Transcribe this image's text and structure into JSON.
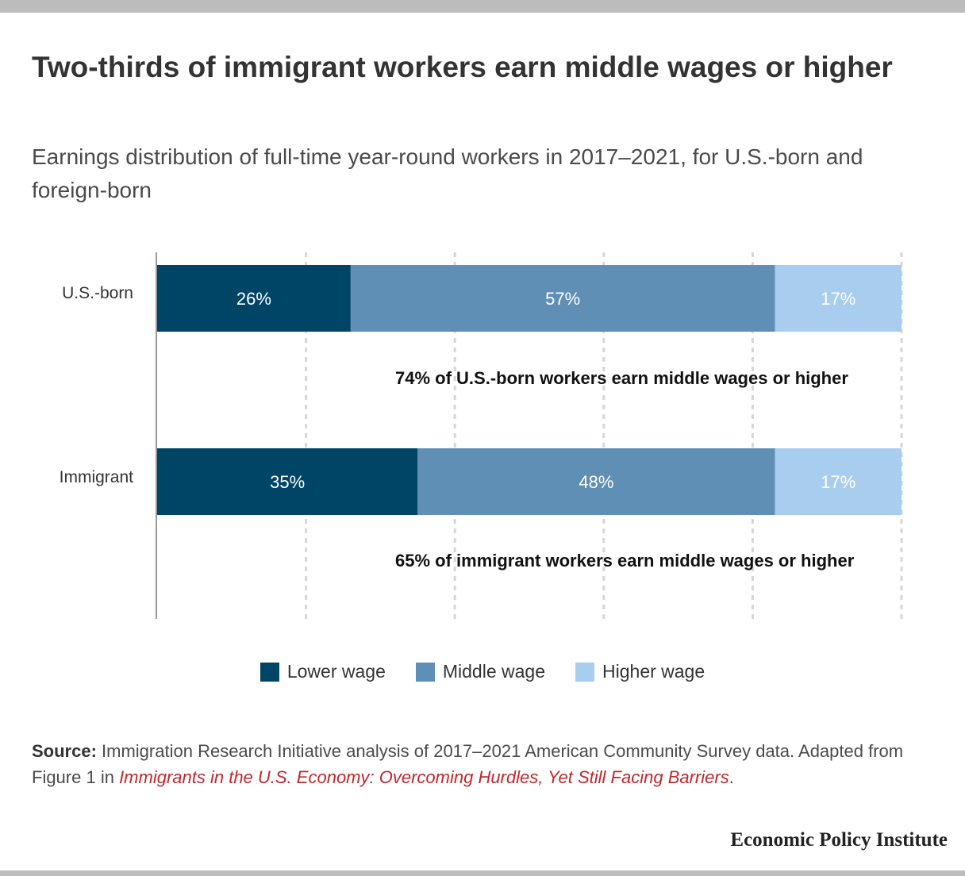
{
  "title": "Two-thirds of immigrant workers earn middle wages or higher",
  "subtitle": "Earnings distribution of full-time year-round workers in 2017–2021, for U.S.-born and foreign-born",
  "colors": {
    "lower": "#004466",
    "middle": "#5f8fb4",
    "higher": "#a9cdee",
    "accent": "#c1272d"
  },
  "chart_data": {
    "type": "bar",
    "orientation": "horizontal",
    "stacked": true,
    "categories": [
      "U.S.-born",
      "Immigrant"
    ],
    "series": [
      {
        "name": "Lower wage",
        "values": [
          26,
          35
        ],
        "labels": [
          "26%",
          "35%"
        ]
      },
      {
        "name": "Middle wage",
        "values": [
          57,
          48
        ],
        "labels": [
          "57%",
          "48%"
        ]
      },
      {
        "name": "Higher wage",
        "values": [
          17,
          17
        ],
        "labels": [
          "17%",
          "17%"
        ]
      }
    ],
    "annotations": [
      "74% of U.S.-born workers earn middle wages or higher",
      "65% of immigrant workers earn middle wages or higher"
    ],
    "xlim": [
      0,
      100
    ],
    "grid": true,
    "legend_position": "bottom"
  },
  "legend": {
    "lower": "Lower wage",
    "middle": "Middle wage",
    "higher": "Higher wage"
  },
  "source": {
    "label": "Source:",
    "text": " Immigration Research Initiative analysis of 2017–2021 American Community Survey data. Adapted from Figure 1 in ",
    "ref": "Immigrants in the U.S. Economy: Overcoming Hurdles, Yet Still Facing Barriers",
    "end": "."
  },
  "brand": "Economic Policy Institute"
}
